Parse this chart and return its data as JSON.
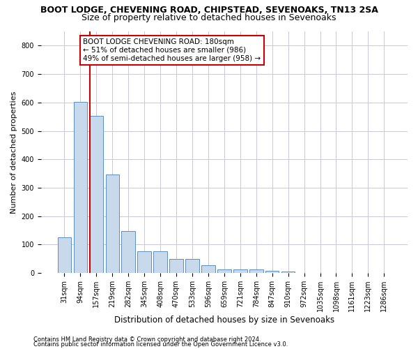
{
  "title": "BOOT LODGE, CHEVENING ROAD, CHIPSTEAD, SEVENOAKS, TN13 2SA",
  "subtitle": "Size of property relative to detached houses in Sevenoaks",
  "xlabel": "Distribution of detached houses by size in Sevenoaks",
  "ylabel": "Number of detached properties",
  "categories": [
    "31sqm",
    "94sqm",
    "157sqm",
    "219sqm",
    "282sqm",
    "345sqm",
    "408sqm",
    "470sqm",
    "533sqm",
    "596sqm",
    "659sqm",
    "721sqm",
    "784sqm",
    "847sqm",
    "910sqm",
    "972sqm",
    "1035sqm",
    "1098sqm",
    "1161sqm",
    "1223sqm",
    "1286sqm"
  ],
  "values": [
    125,
    603,
    553,
    347,
    147,
    76,
    76,
    50,
    50,
    28,
    14,
    13,
    13,
    7,
    5,
    0,
    0,
    0,
    0,
    0,
    0
  ],
  "bar_color": "#c9d9ec",
  "bar_edge_color": "#5a8fc0",
  "vline_color": "#cc0000",
  "annotation_text": "BOOT LODGE CHEVENING ROAD: 180sqm\n← 51% of detached houses are smaller (986)\n49% of semi-detached houses are larger (958) →",
  "annotation_box_color": "#ffffff",
  "annotation_box_edge": "#cc0000",
  "ylim": [
    0,
    850
  ],
  "yticks": [
    0,
    100,
    200,
    300,
    400,
    500,
    600,
    700,
    800
  ],
  "footer1": "Contains HM Land Registry data © Crown copyright and database right 2024.",
  "footer2": "Contains public sector information licensed under the Open Government Licence v3.0.",
  "bg_color": "#ffffff",
  "grid_color": "#c8c8d8",
  "title_fontsize": 9,
  "subtitle_fontsize": 9,
  "tick_fontsize": 7,
  "ylabel_fontsize": 8,
  "xlabel_fontsize": 8.5,
  "annot_fontsize": 7.5,
  "footer_fontsize": 6
}
